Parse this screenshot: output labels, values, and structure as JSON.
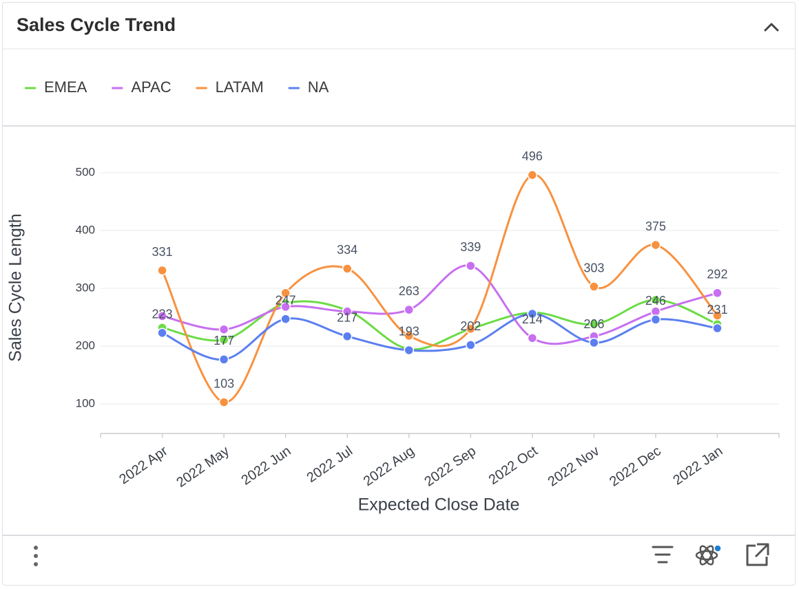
{
  "chart_data": {
    "type": "line",
    "title": "Sales Cycle Trend",
    "x_label": "Expected Close Date",
    "y_label": "Sales Cycle Length",
    "categories": [
      "2022 Apr",
      "2022 May",
      "2022 Jun",
      "2022 Jul",
      "2022 Aug",
      "2022 Sep",
      "2022 Oct",
      "2022 Nov",
      "2022 Dec",
      "2022 Jan"
    ],
    "ylim": [
      49,
      519
    ],
    "yticks": [
      100,
      200,
      300,
      400,
      500
    ],
    "grid": true,
    "legend": "top-left",
    "smooth": true,
    "series": [
      {
        "name": "EMEA",
        "color": "#6cdb45",
        "values": [
          232,
          211,
          274,
          262,
          195,
          230,
          258,
          238,
          280,
          238
        ],
        "label_shown": [
          false,
          false,
          false,
          false,
          false,
          false,
          false,
          false,
          false,
          false
        ]
      },
      {
        "name": "APAC",
        "color": "#c76ff0",
        "values": [
          252,
          229,
          268,
          260,
          263,
          339,
          214,
          217,
          260,
          292
        ],
        "label_shown": [
          false,
          false,
          false,
          false,
          true,
          true,
          true,
          false,
          false,
          true
        ]
      },
      {
        "name": "LATAM",
        "color": "#f8913f",
        "values": [
          331,
          103,
          292,
          334,
          218,
          230,
          496,
          303,
          375,
          253
        ],
        "label_shown": [
          true,
          true,
          false,
          true,
          false,
          false,
          true,
          true,
          true,
          false
        ]
      },
      {
        "name": "NA",
        "color": "#5b7ff0",
        "values": [
          223,
          177,
          247,
          217,
          193,
          202,
          256,
          206,
          246,
          231
        ],
        "label_shown": [
          true,
          true,
          true,
          true,
          true,
          true,
          false,
          true,
          true,
          true
        ]
      }
    ]
  }
}
